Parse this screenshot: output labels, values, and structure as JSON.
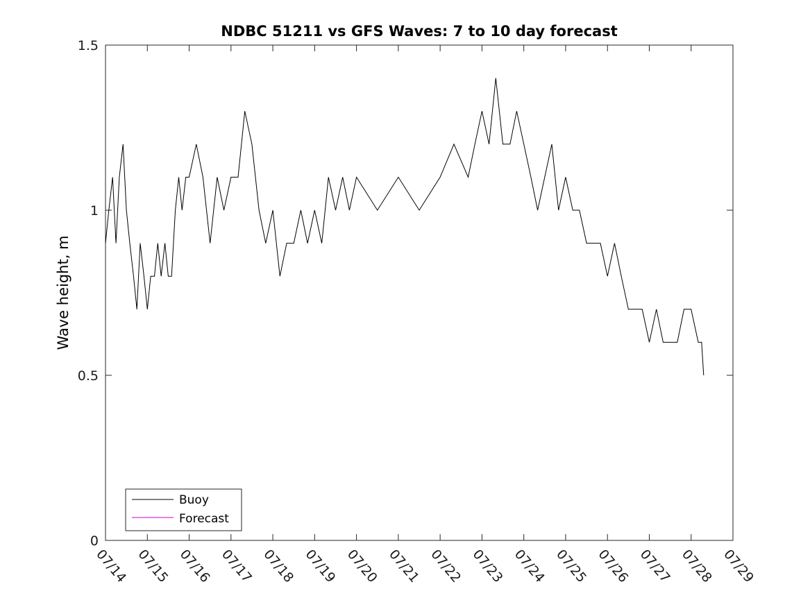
{
  "chart_data": {
    "type": "line",
    "title": "NDBC 51211 vs GFS Waves: 7 to 10 day forecast",
    "xlabel": "",
    "ylabel": "Wave height, m",
    "x_ticks": [
      "07/14",
      "07/15",
      "07/16",
      "07/17",
      "07/18",
      "07/19",
      "07/20",
      "07/21",
      "07/22",
      "07/23",
      "07/24",
      "07/25",
      "07/26",
      "07/27",
      "07/28",
      "07/29"
    ],
    "y_ticks": [
      "0",
      "0.5",
      "1",
      "1.5"
    ],
    "xlim": [
      0,
      15
    ],
    "ylim": [
      0,
      1.5
    ],
    "grid": false,
    "legend_position": "bottom-left",
    "series": [
      {
        "name": "Buoy",
        "color": "#000000",
        "x": [
          0,
          0.08,
          0.17,
          0.25,
          0.33,
          0.42,
          0.5,
          0.58,
          0.67,
          0.75,
          0.83,
          0.92,
          1,
          1.08,
          1.17,
          1.25,
          1.33,
          1.42,
          1.5,
          1.58,
          1.67,
          1.75,
          1.83,
          1.92,
          2,
          2.17,
          2.33,
          2.5,
          2.67,
          2.83,
          3,
          3.17,
          3.33,
          3.5,
          3.67,
          3.83,
          4,
          4.17,
          4.33,
          4.5,
          4.67,
          4.83,
          5,
          5.17,
          5.33,
          5.5,
          5.67,
          5.83,
          6,
          6.5,
          7,
          7.5,
          8,
          8.33,
          8.67,
          8.83,
          9,
          9.17,
          9.33,
          9.5,
          9.67,
          9.83,
          10,
          10.17,
          10.33,
          10.5,
          10.67,
          10.83,
          11,
          11.17,
          11.33,
          11.5,
          11.67,
          11.83,
          12,
          12.17,
          12.33,
          12.5,
          12.67,
          12.83,
          13,
          13.17,
          13.33,
          13.5,
          13.67,
          13.83,
          14,
          14.17,
          14.25,
          14.3
        ],
        "y": [
          0.9,
          1.0,
          1.1,
          0.9,
          1.1,
          1.2,
          1.0,
          0.9,
          0.8,
          0.7,
          0.9,
          0.8,
          0.7,
          0.8,
          0.8,
          0.9,
          0.8,
          0.9,
          0.8,
          0.8,
          1.0,
          1.1,
          1.0,
          1.1,
          1.1,
          1.2,
          1.1,
          0.9,
          1.1,
          1.0,
          1.1,
          1.1,
          1.3,
          1.2,
          1.0,
          0.9,
          1.0,
          0.8,
          0.9,
          0.9,
          1.0,
          0.9,
          1.0,
          0.9,
          1.1,
          1.0,
          1.1,
          1.0,
          1.1,
          1.0,
          1.1,
          1.0,
          1.1,
          1.2,
          1.1,
          1.2,
          1.3,
          1.2,
          1.4,
          1.2,
          1.2,
          1.3,
          1.2,
          1.1,
          1.0,
          1.1,
          1.2,
          1.0,
          1.1,
          1.0,
          1.0,
          0.9,
          0.9,
          0.9,
          0.8,
          0.9,
          0.8,
          0.7,
          0.7,
          0.7,
          0.6,
          0.7,
          0.6,
          0.6,
          0.6,
          0.7,
          0.7,
          0.6,
          0.6,
          0.5
        ]
      },
      {
        "name": "Forecast",
        "color": "#cc00cc",
        "x": [],
        "y": []
      }
    ]
  }
}
